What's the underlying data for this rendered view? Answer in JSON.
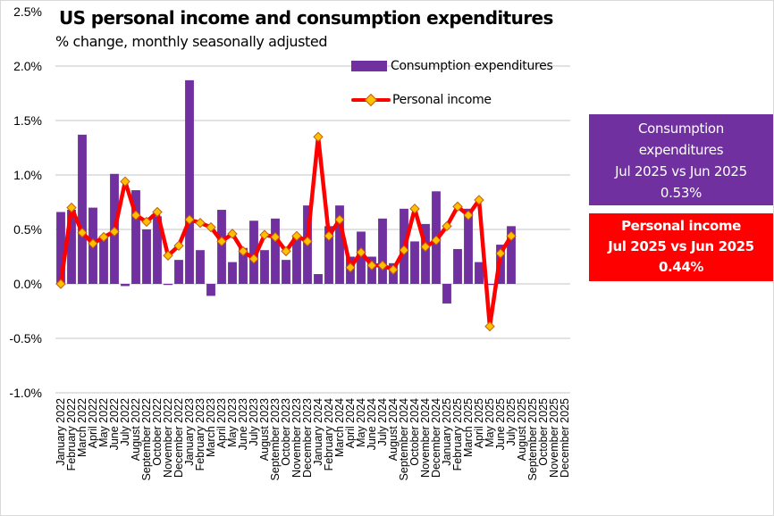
{
  "chart_data": {
    "type": "bar",
    "title": "US personal income and consumption expenditures",
    "subtitle": "% change, monthly seasonally adjusted",
    "xlabel": "",
    "ylabel": "",
    "ylim": [
      -1.0,
      2.5
    ],
    "yticks": [
      2.5,
      2.0,
      1.5,
      1.0,
      0.5,
      0.0,
      -0.5,
      -1.0
    ],
    "ytick_labels": [
      "2.5%",
      "2.0%",
      "1.5%",
      "1.0%",
      "0.5%",
      "0.0%",
      "-0.5%",
      "-1.0%"
    ],
    "grid": true,
    "legend_position": "top-center",
    "categories": [
      "January 2022",
      "February 2022",
      "March 2022",
      "April 2022",
      "May 2022",
      "June 2022",
      "July 2022",
      "August 2022",
      "September 2022",
      "October 2022",
      "November 2022",
      "December 2022",
      "January 2023",
      "February 2023",
      "March 2023",
      "April 2023",
      "May 2023",
      "June 2023",
      "July 2023",
      "August 2023",
      "September 2023",
      "October 2023",
      "November 2023",
      "December 2023",
      "January 2024",
      "February 2024",
      "March 2024",
      "April 2024",
      "May 2024",
      "June 2024",
      "July 2024",
      "August 2024",
      "September 2024",
      "October 2024",
      "November 2024",
      "December 2024",
      "January 2025",
      "February 2025",
      "March 2025",
      "April 2025",
      "May 2025",
      "June 2025",
      "July 2025",
      "August 2025",
      "September 2025",
      "October 2025",
      "November 2025",
      "December 2025"
    ],
    "series": [
      {
        "name": "Consumption expenditures",
        "type": "bar",
        "color": "#7030a0",
        "values": [
          0.66,
          0.68,
          1.37,
          0.7,
          0.43,
          1.01,
          -0.02,
          0.86,
          0.5,
          0.62,
          -0.01,
          0.22,
          1.87,
          0.31,
          -0.11,
          0.68,
          0.2,
          0.33,
          0.58,
          0.31,
          0.6,
          0.22,
          0.43,
          0.72,
          0.09,
          0.53,
          0.72,
          0.25,
          0.48,
          0.25,
          0.6,
          0.19,
          0.69,
          0.39,
          0.55,
          0.85,
          -0.18,
          0.32,
          0.69,
          0.2,
          -0.01,
          0.36,
          0.53,
          null,
          null,
          null,
          null,
          null
        ]
      },
      {
        "name": "Personal income",
        "type": "line",
        "color": "#ff0000",
        "marker_color": "#ffc000",
        "values": [
          0.0,
          0.7,
          0.47,
          0.37,
          0.43,
          0.48,
          0.94,
          0.63,
          0.57,
          0.66,
          0.26,
          0.35,
          0.59,
          0.56,
          0.52,
          0.39,
          0.46,
          0.3,
          0.23,
          0.45,
          0.43,
          0.3,
          0.44,
          0.39,
          1.35,
          0.44,
          0.59,
          0.15,
          0.29,
          0.17,
          0.17,
          0.13,
          0.31,
          0.69,
          0.34,
          0.4,
          0.53,
          0.71,
          0.63,
          0.77,
          -0.39,
          0.28,
          0.44,
          null,
          null,
          null,
          null,
          null
        ]
      }
    ]
  },
  "legend": {
    "bar_label": "Consumption expenditures",
    "line_label": "Personal income"
  },
  "callouts": {
    "consumption": {
      "line1": "Consumption",
      "line2": "expenditures",
      "line3": "Jul 2025 vs Jun 2025",
      "value": "0.53%",
      "color": "#7030a0"
    },
    "income": {
      "line1": "Personal income",
      "line2": "Jul 2025 vs Jun 2025",
      "value": "0.44%",
      "color": "#ff0000"
    }
  }
}
